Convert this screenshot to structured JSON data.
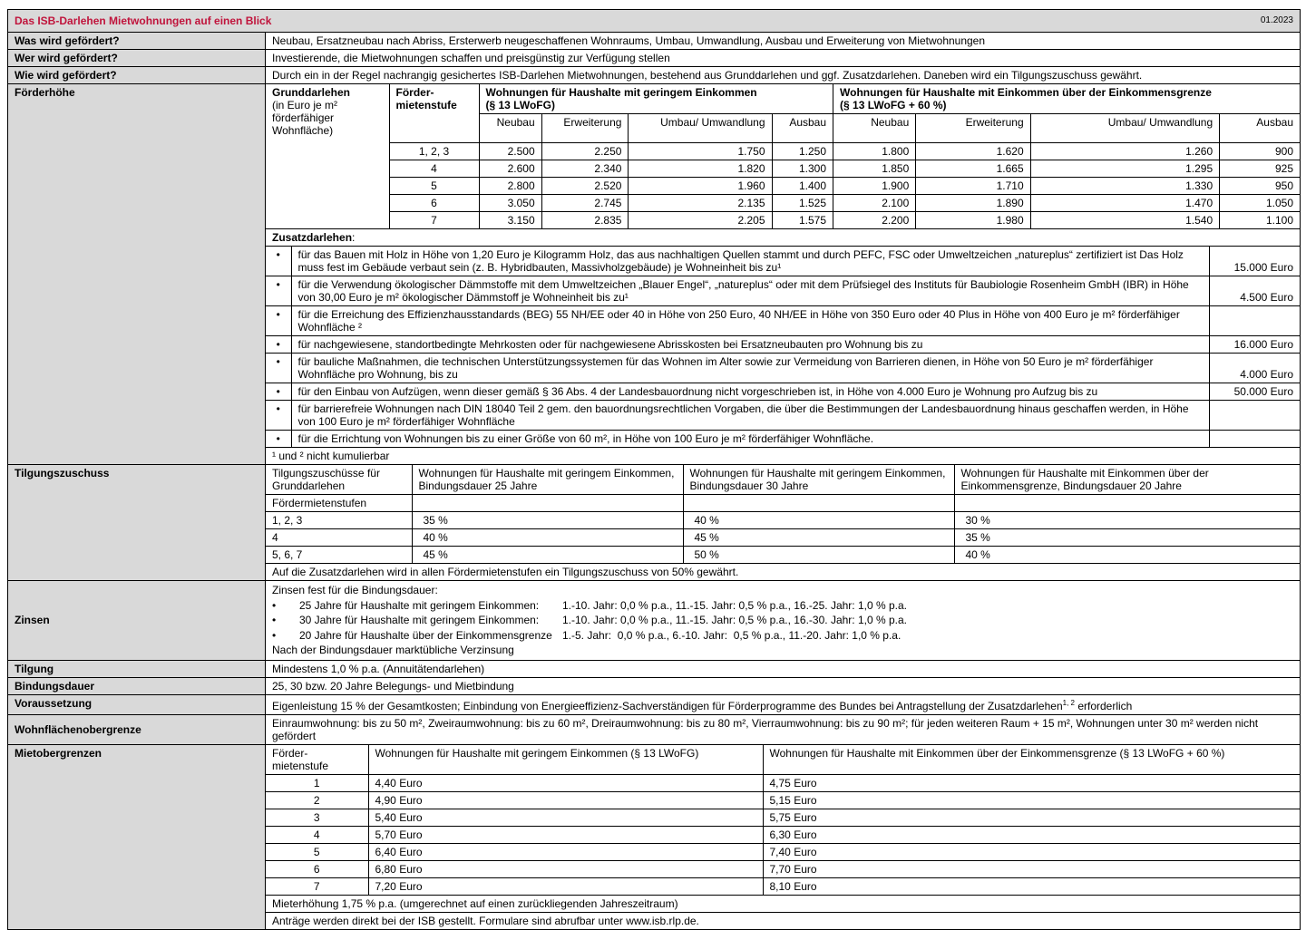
{
  "title": "Das ISB-Darlehen Mietwohnungen auf einen Blick",
  "date": "01.2023",
  "was": {
    "label": "Was wird gefördert?",
    "value": "Neubau, Ersatzneubau nach Abriss, Ersterwerb neugeschaffenen Wohnraums, Umbau, Umwandlung, Ausbau und Erweiterung von Mietwohnungen"
  },
  "wer": {
    "label": "Wer wird gefördert?",
    "value": "Investierende, die Mietwohnungen schaffen und preisgünstig zur Verfügung stellen"
  },
  "wie": {
    "label": "Wie wird gefördert?",
    "value": "Durch ein in der Regel nachrangig gesichertes ISB-Darlehen Mietwohnungen, bestehend aus Grunddarlehen und ggf. Zusatzdarlehen. Daneben wird ein Tilgungszuschuss gewährt."
  },
  "foerderhoehe": {
    "label": "Förderhöhe",
    "grund_title": "Grunddarlehen",
    "grund_sub": "(in Euro je m² förderfähiger Wohnfläche)",
    "stufe_header": "Förder-mietenstufe",
    "group_low": "Wohnungen für Haushalte mit geringem Einkommen",
    "group_low_sub": "(§ 13 LWoFG)",
    "group_high": "Wohnungen für Haushalte mit Einkommen über der Einkommensgrenze",
    "group_high_sub": "(§ 13 LWoFG + 60 %)",
    "cols": [
      "Neubau",
      "Erweiterung",
      "Umbau/ Umwandlung",
      "Ausbau",
      "Neubau",
      "Erweiterung",
      "Umbau/ Umwandlung",
      "Ausbau"
    ],
    "rows": [
      {
        "stufe": "1, 2, 3",
        "v": [
          "2.500",
          "2.250",
          "1.750",
          "1.250",
          "1.800",
          "1.620",
          "1.260",
          "900"
        ]
      },
      {
        "stufe": "4",
        "v": [
          "2.600",
          "2.340",
          "1.820",
          "1.300",
          "1.850",
          "1.665",
          "1.295",
          "925"
        ]
      },
      {
        "stufe": "5",
        "v": [
          "2.800",
          "2.520",
          "1.960",
          "1.400",
          "1.900",
          "1.710",
          "1.330",
          "950"
        ]
      },
      {
        "stufe": "6",
        "v": [
          "3.050",
          "2.745",
          "2.135",
          "1.525",
          "2.100",
          "1.890",
          "1.470",
          "1.050"
        ]
      },
      {
        "stufe": "7",
        "v": [
          "3.150",
          "2.835",
          "2.205",
          "1.575",
          "2.200",
          "1.980",
          "1.540",
          "1.100"
        ]
      }
    ],
    "zusatz_title": "Zusatzdarlehen",
    "zusatz_colon": ":",
    "zusatz": [
      {
        "text": "für das Bauen mit Holz in Höhe von 1,20 Euro je Kilogramm Holz, das aus nachhaltigen Quellen stammt und durch PEFC, FSC oder Umweltzeichen „natureplus“ zertifiziert ist Das Holz muss fest im Gebäude verbaut sein (z. B. Hybridbauten, Massivholzgebäude) je Wohneinheit bis zu¹",
        "amount": "15.000 Euro"
      },
      {
        "text": "für die Verwendung ökologischer Dämmstoffe mit dem Umweltzeichen „Blauer Engel“, „natureplus“ oder mit dem Prüfsiegel des Instituts für Baubiologie Rosenheim GmbH (IBR) in Höhe von 30,00 Euro je m² ökologischer Dämmstoff je Wohneinheit bis zu¹",
        "amount": "4.500 Euro"
      },
      {
        "text": "für die Erreichung des Effizienzhausstandards (BEG) 55 NH/EE oder 40 in Höhe von 250 Euro, 40 NH/EE in Höhe von 350 Euro oder 40 Plus in Höhe von 400 Euro je m² förderfähiger Wohnfläche ²",
        "amount": ""
      },
      {
        "text": "für nachgewiesene, standortbedingte Mehrkosten oder für nachgewiesene Abrisskosten bei Ersatzneubauten pro Wohnung bis zu",
        "amount": "16.000 Euro"
      },
      {
        "text": "für bauliche Maßnahmen, die technischen Unterstützungssystemen für das Wohnen im Alter sowie zur Vermeidung von Barrieren dienen, in Höhe von 50 Euro je m² förderfähiger Wohnfläche pro Wohnung, bis zu",
        "amount": "4.000 Euro"
      },
      {
        "text": "für den Einbau von Aufzügen, wenn dieser gemäß § 36 Abs. 4 der Landesbauordnung nicht vorgeschrieben ist, in Höhe von 4.000 Euro je Wohnung pro Aufzug bis zu",
        "amount": "50.000 Euro"
      },
      {
        "text": "für barrierefreie Wohnungen nach DIN 18040 Teil 2 gem. den bauordnungsrechtlichen Vorgaben, die über die Bestimmungen der Landesbauordnung hinaus geschaffen werden, in Höhe von 100 Euro je m² förderfähiger Wohnfläche",
        "amount": ""
      },
      {
        "text": "für die Errichtung von Wohnungen bis zu einer Größe von 60 m², in Höhe von 100 Euro je m² förderfähiger Wohnfläche.",
        "amount": ""
      }
    ],
    "footnote": "¹ und ² nicht kumulierbar"
  },
  "tilgung_zuschuss": {
    "label": "Tilgungszuschuss",
    "headers": [
      "Tilgungszuschüsse für Grunddarlehen",
      "Wohnungen für Haushalte mit geringem Einkommen, Bindungsdauer 25 Jahre",
      "Wohnungen für Haushalte mit geringem Einkommen, Bindungsdauer 30 Jahre",
      "Wohnungen für Haushalte mit Einkommen über der Einkommensgrenze, Bindungsdauer 20 Jahre"
    ],
    "sub": "Fördermietenstufen",
    "rows": [
      {
        "stufe": "1, 2, 3",
        "v": [
          "35 %",
          "40 %",
          "30 %"
        ]
      },
      {
        "stufe": "4",
        "v": [
          "40 %",
          "45 %",
          "35 %"
        ]
      },
      {
        "stufe": "5, 6, 7",
        "v": [
          "45 %",
          "50 %",
          "40 %"
        ]
      }
    ],
    "note": "Auf die Zusatzdarlehen wird in allen Fördermietenstufen ein Tilgungszuschuss von 50% gewährt."
  },
  "zinsen": {
    "label": "Zinsen",
    "intro": "Zinsen fest für die Bindungsdauer:",
    "items": [
      {
        "who": "25 Jahre für Haushalte mit geringem Einkommen:",
        "rates": "1.-10. Jahr: 0,0 % p.a., 11.-15. Jahr: 0,5 % p.a., 16.-25. Jahr: 1,0 % p.a."
      },
      {
        "who": "30 Jahre für Haushalte mit geringem Einkommen:",
        "rates": "1.-10. Jahr: 0,0 % p.a., 11.-15. Jahr: 0,5 % p.a., 16.-30. Jahr: 1,0 % p.a."
      },
      {
        "who": "20 Jahre für Haushalte über der Einkommensgrenze",
        "rates": "1.-5. Jahr:  0,0 % p.a., 6.-10. Jahr:  0,5 % p.a., 11.-20. Jahr: 1,0 % p.a."
      }
    ],
    "outro": "Nach der Bindungsdauer marktübliche Verzinsung"
  },
  "tilgung": {
    "label": "Tilgung",
    "value": "Mindestens 1,0 % p.a. (Annuitätendarlehen)"
  },
  "bindung": {
    "label": "Bindungsdauer",
    "value": "25, 30 bzw. 20 Jahre Belegungs- und Mietbindung"
  },
  "voraussetzung": {
    "label": "Voraussetzung",
    "value": "Eigenleistung 15 % der Gesamtkosten; Einbindung von Energieeffizienz-Sachverständigen für Förderprogramme des Bundes bei Antragstellung der Zusatzdarlehen",
    "sup": "1, 2",
    "value_end": " erforderlich"
  },
  "wohnflaeche": {
    "label": "Wohnflächenobergrenze",
    "value": "Einraumwohnung: bis zu 50 m², Zweiraumwohnung: bis zu 60 m², Dreiraumwohnung: bis zu 80 m², Vierraumwohnung: bis zu 90 m²; für jeden weiteren Raum + 15 m², Wohnungen unter 30 m² werden nicht gefördert"
  },
  "miete": {
    "label": "Mietobergrenzen",
    "headers": [
      "Förder-mietenstufe",
      "Wohnungen für Haushalte mit geringem Einkommen (§ 13 LWoFG)",
      "Wohnungen für Haushalte mit Einkommen über der Einkommensgrenze (§ 13 LWoFG + 60 %)"
    ],
    "rows": [
      {
        "stufe": "1",
        "low": "4,40 Euro",
        "high": "4,75 Euro"
      },
      {
        "stufe": "2",
        "low": "4,90 Euro",
        "high": "5,15 Euro"
      },
      {
        "stufe": "3",
        "low": "5,40 Euro",
        "high": "5,75 Euro"
      },
      {
        "stufe": "4",
        "low": "5,70 Euro",
        "high": "6,30 Euro"
      },
      {
        "stufe": "5",
        "low": "6,40 Euro",
        "high": "7,40 Euro"
      },
      {
        "stufe": "6",
        "low": "6,80 Euro",
        "high": "7,70 Euro"
      },
      {
        "stufe": "7",
        "low": "7,20 Euro",
        "high": "8,10 Euro"
      }
    ],
    "note": "Mieterhöhung 1,75 % p.a. (umgerechnet auf einen zurückliegenden Jahreszeitraum)"
  },
  "antraege": "Anträge werden direkt bei der ISB gestellt. Formulare sind abrufbar unter www.isb.rlp.de.",
  "colors": {
    "title": "#c0143c",
    "label_bg": "#d9d9d9"
  }
}
